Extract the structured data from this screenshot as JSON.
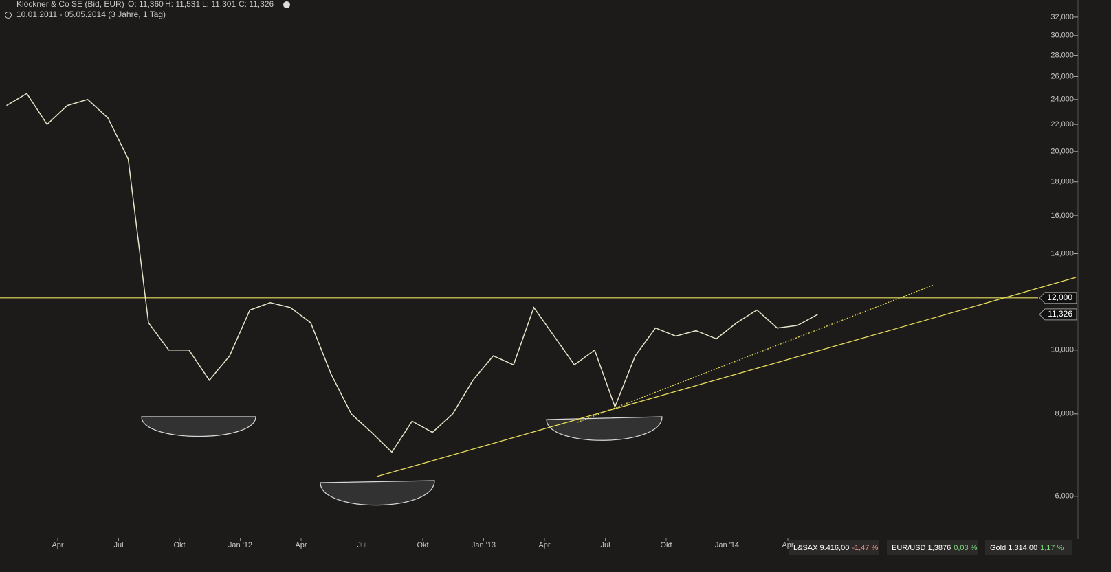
{
  "header": {
    "name": "Klöckner & Co SE (Bid, EUR)",
    "ohlc": [
      "O: 11,360",
      "H: 11,531",
      "L: 11,301",
      "C: 11,326"
    ],
    "range": "10.01.2011 - 05.05.2014 (3 Jahre, 1 Tag)"
  },
  "chart_data": {
    "type": "line",
    "log_scale": true,
    "x": [
      "2011-01",
      "2011-02",
      "2011-03",
      "2011-04",
      "2011-05",
      "2011-06",
      "2011-07",
      "2011-08",
      "2011-09",
      "2011-10",
      "2011-11",
      "2011-12",
      "2012-01",
      "2012-02",
      "2012-03",
      "2012-04",
      "2012-05",
      "2012-06",
      "2012-07",
      "2012-08",
      "2012-09",
      "2012-10",
      "2012-11",
      "2012-12",
      "2013-01",
      "2013-02",
      "2013-03",
      "2013-04",
      "2013-05",
      "2013-06",
      "2013-07",
      "2013-08",
      "2013-09",
      "2013-10",
      "2013-11",
      "2013-12",
      "2014-01",
      "2014-02",
      "2014-03",
      "2014-04",
      "2014-05"
    ],
    "series": [
      {
        "color": "#e8e4c8",
        "values": [
          23500,
          24500,
          22000,
          23500,
          24000,
          22500,
          19500,
          11000,
          10000,
          10000,
          9000,
          9800,
          11500,
          11800,
          11600,
          11000,
          9200,
          8000,
          7500,
          7000,
          7800,
          7500,
          8000,
          9000,
          9800,
          9500,
          11600,
          10500,
          9500,
          10000,
          8200,
          9800,
          10800,
          10500,
          10700,
          10400,
          11000,
          11500,
          10800,
          10900,
          11326
        ]
      }
    ],
    "ylim": [
      5230,
      33970
    ],
    "yticks": [
      {
        "value": 6000,
        "label": "6,000"
      },
      {
        "value": 8000,
        "label": "8,000"
      },
      {
        "value": 10000,
        "label": "10,000"
      },
      {
        "value": 14000,
        "label": "14,000"
      },
      {
        "value": 16000,
        "label": "16,000"
      },
      {
        "value": 18000,
        "label": "18,000"
      },
      {
        "value": 20000,
        "label": "20,000"
      },
      {
        "value": 22000,
        "label": "22,000"
      },
      {
        "value": 24000,
        "label": "24,000"
      },
      {
        "value": 26000,
        "label": "26,000"
      },
      {
        "value": 28000,
        "label": "28,000"
      },
      {
        "value": 30000,
        "label": "30,000"
      },
      {
        "value": 32000,
        "label": "32,000"
      }
    ],
    "xticks": [
      {
        "value": "2011-04",
        "label": "Apr"
      },
      {
        "value": "2011-07",
        "label": "Jul"
      },
      {
        "value": "2011-10",
        "label": "Okt"
      },
      {
        "value": "2012-01",
        "label": "Jan '12"
      },
      {
        "value": "2012-04",
        "label": "Apr"
      },
      {
        "value": "2012-07",
        "label": "Jul"
      },
      {
        "value": "2012-10",
        "label": "Okt"
      },
      {
        "value": "2013-01",
        "label": "Jan '13"
      },
      {
        "value": "2013-04",
        "label": "Apr"
      },
      {
        "value": "2013-07",
        "label": "Jul"
      },
      {
        "value": "2013-10",
        "label": "Okt"
      },
      {
        "value": "2014-01",
        "label": "Jan '14"
      },
      {
        "value": "2014-04",
        "label": "Apr"
      }
    ],
    "level": {
      "value": 12000,
      "label": "12,000",
      "color": "#e6dc5a"
    },
    "last_price": {
      "value": 11326,
      "label": "11,326"
    }
  },
  "footer": [
    [
      "L&SAX 9.416,00",
      "-1,47 %"
    ],
    [
      "EUR/USD 1,3876",
      "0,03 %"
    ],
    [
      "Gold 1.314,00",
      "1,17 %"
    ]
  ]
}
